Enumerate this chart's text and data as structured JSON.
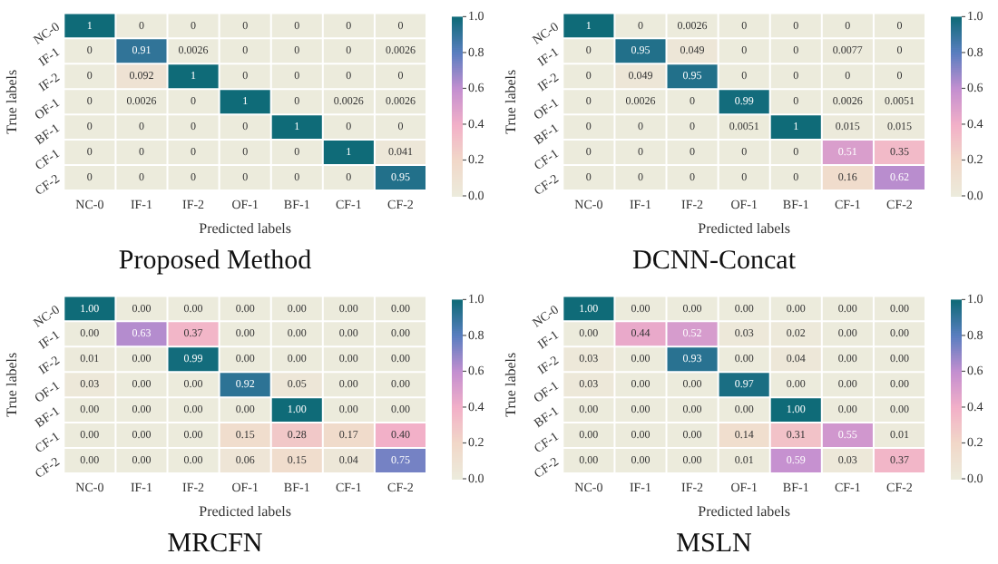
{
  "chart_data": [
    {
      "type": "heatmap",
      "title": "Proposed Method",
      "xlabel": "Predicted labels",
      "ylabel": "True labels",
      "categories": [
        "NC-0",
        "IF-1",
        "IF-2",
        "OF-1",
        "BF-1",
        "CF-1",
        "CF-2"
      ],
      "y_categories": [
        "NC-0",
        "IF-1",
        "IF-2",
        "OF-1",
        "BF-1",
        "CF-1",
        "CF-2"
      ],
      "cells": [
        [
          1,
          0,
          0,
          0,
          0,
          0,
          0
        ],
        [
          0,
          0.91,
          0.0026,
          0,
          0,
          0,
          0.0026
        ],
        [
          0,
          0.092,
          1,
          0,
          0,
          0,
          0
        ],
        [
          0,
          0.0026,
          0,
          1,
          0,
          0.0026,
          0.0026
        ],
        [
          0,
          0,
          0,
          0,
          1,
          0,
          0
        ],
        [
          0,
          0,
          0,
          0,
          0,
          1,
          0.041
        ],
        [
          0,
          0,
          0,
          0,
          0,
          0,
          0.95
        ]
      ],
      "cell_labels": [
        [
          "1",
          "0",
          "0",
          "0",
          "0",
          "0",
          "0"
        ],
        [
          "0",
          "0.91",
          "0.0026",
          "0",
          "0",
          "0",
          "0.0026"
        ],
        [
          "0",
          "0.092",
          "1",
          "0",
          "0",
          "0",
          "0"
        ],
        [
          "0",
          "0.0026",
          "0",
          "1",
          "0",
          "0.0026",
          "0.0026"
        ],
        [
          "0",
          "0",
          "0",
          "0",
          "1",
          "0",
          "0"
        ],
        [
          "0",
          "0",
          "0",
          "0",
          "0",
          "1",
          "0.041"
        ],
        [
          "0",
          "0",
          "0",
          "0",
          "0",
          "0",
          "0.95"
        ]
      ],
      "clim": [
        0,
        1
      ],
      "cticks": [
        {
          "value": 0,
          "label": "0.0"
        },
        {
          "value": 0.2,
          "label": "0.2"
        },
        {
          "value": 0.4,
          "label": "0.4"
        },
        {
          "value": 0.6,
          "label": "0.6"
        },
        {
          "value": 0.8,
          "label": "0.8"
        },
        {
          "value": 1,
          "label": "1.0"
        }
      ]
    },
    {
      "type": "heatmap",
      "title": "DCNN-Concat",
      "xlabel": "Predicted labels",
      "ylabel": "True labels",
      "categories": [
        "NC-0",
        "IF-1",
        "IF-2",
        "OF-1",
        "BF-1",
        "CF-1",
        "CF-2"
      ],
      "y_categories": [
        "NC-0",
        "IF-1",
        "IF-2",
        "OF-1",
        "BF-1",
        "CF-1",
        "CF-2"
      ],
      "cells": [
        [
          1,
          0,
          0.0026,
          0,
          0,
          0,
          0
        ],
        [
          0,
          0.95,
          0.049,
          0,
          0,
          0.0077,
          0
        ],
        [
          0,
          0.049,
          0.95,
          0,
          0,
          0,
          0
        ],
        [
          0,
          0.0026,
          0,
          0.99,
          0,
          0.0026,
          0.0051
        ],
        [
          0,
          0,
          0,
          0.0051,
          1,
          0.015,
          0.015
        ],
        [
          0,
          0,
          0,
          0,
          0,
          0.51,
          0.35
        ],
        [
          0,
          0,
          0,
          0,
          0,
          0.16,
          0.62
        ]
      ],
      "cell_labels": [
        [
          "1",
          "0",
          "0.0026",
          "0",
          "0",
          "0",
          "0"
        ],
        [
          "0",
          "0.95",
          "0.049",
          "0",
          "0",
          "0.0077",
          "0"
        ],
        [
          "0",
          "0.049",
          "0.95",
          "0",
          "0",
          "0",
          "0"
        ],
        [
          "0",
          "0.0026",
          "0",
          "0.99",
          "0",
          "0.0026",
          "0.0051"
        ],
        [
          "0",
          "0",
          "0",
          "0.0051",
          "1",
          "0.015",
          "0.015"
        ],
        [
          "0",
          "0",
          "0",
          "0",
          "0",
          "0.51",
          "0.35"
        ],
        [
          "0",
          "0",
          "0",
          "0",
          "0",
          "0.16",
          "0.62"
        ]
      ],
      "clim": [
        0,
        1
      ],
      "cticks": [
        {
          "value": 0,
          "label": "0.0"
        },
        {
          "value": 0.2,
          "label": "0.2"
        },
        {
          "value": 0.4,
          "label": "0.4"
        },
        {
          "value": 0.6,
          "label": "0.6"
        },
        {
          "value": 0.8,
          "label": "0.8"
        },
        {
          "value": 1,
          "label": "1.0"
        }
      ]
    },
    {
      "type": "heatmap",
      "title": "MRCFN",
      "xlabel": "Predicted labels",
      "ylabel": "True labels",
      "categories": [
        "NC-0",
        "IF-1",
        "IF-2",
        "OF-1",
        "BF-1",
        "CF-1",
        "CF-2"
      ],
      "y_categories": [
        "NC-0",
        "IF-1",
        "IF-2",
        "OF-1",
        "BF-1",
        "CF-1",
        "CF-2"
      ],
      "cells": [
        [
          1,
          0,
          0,
          0,
          0,
          0,
          0
        ],
        [
          0,
          0.63,
          0.37,
          0,
          0,
          0,
          0
        ],
        [
          0.01,
          0,
          0.99,
          0,
          0,
          0,
          0
        ],
        [
          0.03,
          0,
          0,
          0.92,
          0.05,
          0,
          0
        ],
        [
          0,
          0,
          0,
          0,
          1,
          0,
          0
        ],
        [
          0,
          0,
          0,
          0.15,
          0.28,
          0.17,
          0.4
        ],
        [
          0,
          0,
          0,
          0.06,
          0.15,
          0.04,
          0.75
        ]
      ],
      "cell_labels": [
        [
          "1.00",
          "0.00",
          "0.00",
          "0.00",
          "0.00",
          "0.00",
          "0.00"
        ],
        [
          "0.00",
          "0.63",
          "0.37",
          "0.00",
          "0.00",
          "0.00",
          "0.00"
        ],
        [
          "0.01",
          "0.00",
          "0.99",
          "0.00",
          "0.00",
          "0.00",
          "0.00"
        ],
        [
          "0.03",
          "0.00",
          "0.00",
          "0.92",
          "0.05",
          "0.00",
          "0.00"
        ],
        [
          "0.00",
          "0.00",
          "0.00",
          "0.00",
          "1.00",
          "0.00",
          "0.00"
        ],
        [
          "0.00",
          "0.00",
          "0.00",
          "0.15",
          "0.28",
          "0.17",
          "0.40"
        ],
        [
          "0.00",
          "0.00",
          "0.00",
          "0.06",
          "0.15",
          "0.04",
          "0.75"
        ]
      ],
      "clim": [
        0,
        1
      ],
      "cticks": [
        {
          "value": 0,
          "label": "0.0"
        },
        {
          "value": 0.2,
          "label": "0.2"
        },
        {
          "value": 0.4,
          "label": "0.4"
        },
        {
          "value": 0.6,
          "label": "0.6"
        },
        {
          "value": 0.8,
          "label": "0.8"
        },
        {
          "value": 1,
          "label": "1.0"
        }
      ]
    },
    {
      "type": "heatmap",
      "title": "MSLN",
      "xlabel": "Predicted labels",
      "ylabel": "True labels",
      "categories": [
        "NC-0",
        "IF-1",
        "IF-2",
        "OF-1",
        "BF-1",
        "CF-1",
        "CF-2"
      ],
      "y_categories": [
        "NC-0",
        "IF-1",
        "IF-2",
        "OF-1",
        "BF-1",
        "CF-1",
        "CF-2"
      ],
      "cells": [
        [
          1,
          0,
          0,
          0,
          0,
          0,
          0
        ],
        [
          0,
          0.44,
          0.52,
          0.03,
          0.02,
          0,
          0
        ],
        [
          0.03,
          0,
          0.93,
          0,
          0.04,
          0,
          0
        ],
        [
          0.03,
          0,
          0,
          0.97,
          0,
          0,
          0
        ],
        [
          0,
          0,
          0,
          0,
          1,
          0,
          0
        ],
        [
          0,
          0,
          0,
          0.14,
          0.31,
          0.55,
          0.01
        ],
        [
          0,
          0,
          0,
          0.01,
          0.59,
          0.03,
          0.37
        ]
      ],
      "cell_labels": [
        [
          "1.00",
          "0.00",
          "0.00",
          "0.00",
          "0.00",
          "0.00",
          "0.00"
        ],
        [
          "0.00",
          "0.44",
          "0.52",
          "0.03",
          "0.02",
          "0.00",
          "0.00"
        ],
        [
          "0.03",
          "0.00",
          "0.93",
          "0.00",
          "0.04",
          "0.00",
          "0.00"
        ],
        [
          "0.03",
          "0.00",
          "0.00",
          "0.97",
          "0.00",
          "0.00",
          "0.00"
        ],
        [
          "0.00",
          "0.00",
          "0.00",
          "0.00",
          "1.00",
          "0.00",
          "0.00"
        ],
        [
          "0.00",
          "0.00",
          "0.00",
          "0.14",
          "0.31",
          "0.55",
          "0.01"
        ],
        [
          "0.00",
          "0.00",
          "0.00",
          "0.01",
          "0.59",
          "0.03",
          "0.37"
        ]
      ],
      "clim": [
        0,
        1
      ],
      "cticks": [
        {
          "value": 0,
          "label": "0.0"
        },
        {
          "value": 0.2,
          "label": "0.2"
        },
        {
          "value": 0.4,
          "label": "0.4"
        },
        {
          "value": 0.6,
          "label": "0.6"
        },
        {
          "value": 0.8,
          "label": "0.8"
        },
        {
          "value": 1,
          "label": "1.0"
        }
      ]
    }
  ]
}
